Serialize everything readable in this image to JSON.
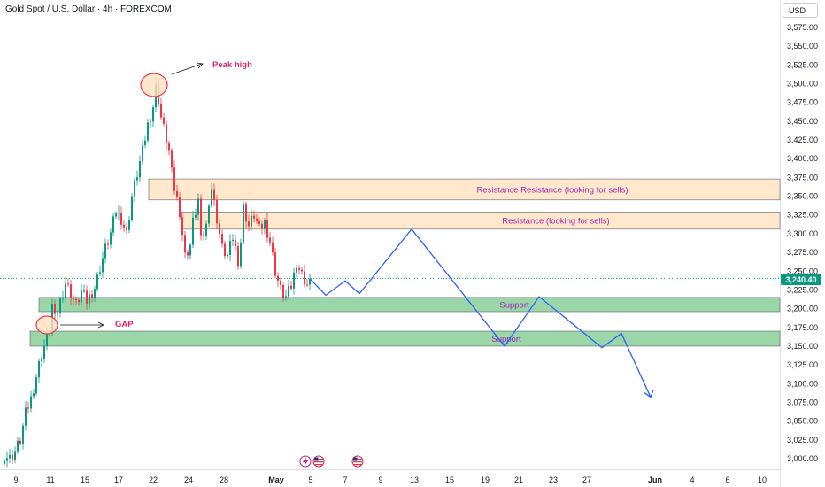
{
  "header": {
    "title": "Gold Spot / U.S. Dollar · 4h · FOREXCOM",
    "currency_button": "USD"
  },
  "last_price": "3,240.40",
  "colors": {
    "up": "#089981",
    "down": "#f23645",
    "resistance_fill": "#ffe4c2",
    "support_fill": "#8fd19e",
    "projection": "#2962ff",
    "annotation_text": "#e91e63",
    "zone_label": "#9c27b0"
  },
  "chart_data": {
    "type": "candlestick",
    "title": "Gold Spot / U.S. Dollar · 4h · FOREXCOM",
    "ylim": [
      2985,
      3600
    ],
    "y_ticks": [
      "3,000.00",
      "3,025.00",
      "3,050.00",
      "3,075.00",
      "3,100.00",
      "3,125.00",
      "3,150.00",
      "3,175.00",
      "3,200.00",
      "3,225.00",
      "3,250.00",
      "3,275.00",
      "3,300.00",
      "3,325.00",
      "3,350.00",
      "3,375.00",
      "3,400.00",
      "3,425.00",
      "3,450.00",
      "3,475.00",
      "3,500.00",
      "3,525.00",
      "3,550.00",
      "3,575.00"
    ],
    "x_ticks": [
      "9",
      "11",
      "15",
      "17",
      "22",
      "24",
      "28",
      "May",
      "5",
      "7",
      "9",
      "13",
      "15",
      "19",
      "21",
      "23",
      "27",
      "Jun",
      "4",
      "6",
      "10"
    ],
    "price_path": [
      [
        0,
        3005
      ],
      [
        2,
        3000
      ],
      [
        4,
        3010
      ],
      [
        6,
        3025
      ],
      [
        8,
        3060
      ],
      [
        10,
        3080
      ],
      [
        12,
        3110
      ],
      [
        14,
        3140
      ],
      [
        16,
        3160
      ],
      [
        17,
        3172
      ],
      [
        18,
        3205
      ],
      [
        19,
        3185
      ],
      [
        21,
        3210
      ],
      [
        23,
        3235
      ],
      [
        25,
        3220
      ],
      [
        27,
        3205
      ],
      [
        29,
        3222
      ],
      [
        31,
        3210
      ],
      [
        34,
        3228
      ],
      [
        36,
        3255
      ],
      [
        38,
        3280
      ],
      [
        40,
        3300
      ],
      [
        42,
        3330
      ],
      [
        44,
        3320
      ],
      [
        46,
        3300
      ],
      [
        48,
        3350
      ],
      [
        50,
        3380
      ],
      [
        52,
        3410
      ],
      [
        54,
        3445
      ],
      [
        56,
        3470
      ],
      [
        57,
        3495
      ],
      [
        58,
        3480
      ],
      [
        59,
        3455
      ],
      [
        60,
        3440
      ],
      [
        62,
        3410
      ],
      [
        63,
        3380
      ],
      [
        64,
        3360
      ],
      [
        66,
        3330
      ],
      [
        67,
        3300
      ],
      [
        68,
        3270
      ],
      [
        70,
        3285
      ],
      [
        71,
        3315
      ],
      [
        73,
        3345
      ],
      [
        74,
        3290
      ],
      [
        76,
        3310
      ],
      [
        77,
        3345
      ],
      [
        78,
        3360
      ],
      [
        80,
        3320
      ],
      [
        82,
        3280
      ],
      [
        84,
        3270
      ],
      [
        86,
        3295
      ],
      [
        88,
        3265
      ],
      [
        89,
        3290
      ],
      [
        90,
        3335
      ],
      [
        92,
        3310
      ],
      [
        94,
        3325
      ],
      [
        96,
        3305
      ],
      [
        98,
        3315
      ],
      [
        100,
        3290
      ],
      [
        101,
        3270
      ],
      [
        102,
        3250
      ],
      [
        104,
        3225
      ],
      [
        106,
        3215
      ],
      [
        108,
        3230
      ],
      [
        109,
        3245
      ],
      [
        110,
        3262
      ],
      [
        112,
        3245
      ],
      [
        114,
        3232
      ],
      [
        115,
        3240
      ]
    ],
    "zones": [
      {
        "kind": "resistance",
        "label": "Resistance Resistance  (looking for sells)",
        "y1": 3345,
        "y2": 3373
      },
      {
        "kind": "resistance",
        "label": "Resistance  (looking for sells)",
        "y1": 3306,
        "y2": 3329
      },
      {
        "kind": "support",
        "label": "Support",
        "y1": 3196,
        "y2": 3215
      },
      {
        "kind": "support",
        "label": "Support",
        "y1": 3150,
        "y2": 3170
      }
    ],
    "projection_path": [
      [
        3240
      ],
      [
        3218
      ],
      [
        3237
      ],
      [
        3220
      ],
      [
        3306
      ],
      [
        3150
      ],
      [
        3216
      ],
      [
        3148
      ],
      [
        3167
      ],
      [
        3082
      ]
    ],
    "annotations": [
      {
        "name": "peak",
        "label": "Peak high"
      },
      {
        "name": "gap",
        "label": "GAP"
      }
    ]
  }
}
